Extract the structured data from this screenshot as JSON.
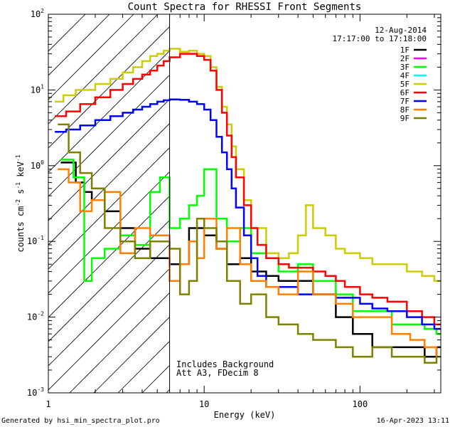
{
  "chart_data": {
    "type": "line",
    "title": "Count Spectra for RHESSI Front Segments",
    "xlabel": "Energy (keV)",
    "ylabel_main": "counts cm",
    "ylabel_exp1": "-2",
    "ylabel_mid": " s",
    "ylabel_exp2": "-1",
    "ylabel_tail": " keV",
    "ylabel_exp3": "-1",
    "xscale": "log",
    "yscale": "log",
    "xlim": [
      1,
      330
    ],
    "ylim": [
      0.001,
      100
    ],
    "x_ticks": [
      {
        "value": 1,
        "label": "1"
      },
      {
        "value": 10,
        "label": "10"
      },
      {
        "value": 100,
        "label": "100"
      }
    ],
    "y_ticks": [
      {
        "value": 0.001,
        "base": "10",
        "exp": "-3"
      },
      {
        "value": 0.01,
        "base": "10",
        "exp": "-2"
      },
      {
        "value": 0.1,
        "base": "10",
        "exp": "-1"
      },
      {
        "value": 1,
        "base": "10",
        "exp": "0"
      },
      {
        "value": 10,
        "base": "10",
        "exp": "1"
      },
      {
        "value": 100,
        "base": "10",
        "exp": "2"
      }
    ],
    "date": "12-Aug-2014",
    "time_range": "17:17:00 to 17:18:00",
    "attenuator_line_x": 6,
    "hatch_region": [
      1,
      6
    ],
    "annotation_line1": "Includes Background",
    "annotation_line2": "Att A3, FDecim 8",
    "series": [
      {
        "name": "1F",
        "color": "#000000",
        "x": [
          1.2,
          1.5,
          1.7,
          1.9,
          2.3,
          2.9,
          3.6,
          4.5,
          6,
          8,
          10,
          12,
          14,
          17,
          20,
          25,
          30,
          40,
          50,
          70,
          90,
          120,
          160,
          210,
          260,
          310
        ],
        "y": [
          1.1,
          0.6,
          0.45,
          0.35,
          0.25,
          0.15,
          0.08,
          0.06,
          0.05,
          0.15,
          0.12,
          0.08,
          0.05,
          0.06,
          0.04,
          0.035,
          0.03,
          0.03,
          0.02,
          0.01,
          0.006,
          0.004,
          0.004,
          0.004,
          0.003,
          0.004
        ]
      },
      {
        "name": "2F",
        "color": "#ff00ff",
        "x": [],
        "y": []
      },
      {
        "name": "3F",
        "color": "#00ff00",
        "x": [
          1.2,
          1.45,
          1.7,
          1.9,
          2.3,
          2.9,
          3.6,
          4.5,
          5.2,
          6,
          7,
          8,
          9,
          10,
          12,
          14,
          17,
          20,
          25,
          30,
          40,
          50,
          70,
          90,
          120,
          160,
          210,
          260,
          310
        ],
        "y": [
          1.2,
          0.7,
          0.03,
          0.06,
          0.08,
          0.12,
          0.09,
          0.45,
          0.7,
          0.15,
          0.2,
          0.3,
          0.4,
          0.9,
          0.2,
          0.1,
          0.15,
          0.07,
          0.06,
          0.04,
          0.05,
          0.03,
          0.02,
          0.012,
          0.012,
          0.008,
          0.008,
          0.007,
          0.006
        ]
      },
      {
        "name": "4F",
        "color": "#00ffff",
        "x": [],
        "y": []
      },
      {
        "name": "5F",
        "color": "#cccc00",
        "x": [
          1.1,
          1.25,
          1.5,
          2.0,
          2.5,
          3.0,
          3.5,
          4.0,
          4.5,
          5.0,
          5.5,
          6.0,
          7.0,
          8.0,
          9.0,
          10,
          11,
          12,
          13,
          14,
          15,
          16,
          18,
          20,
          25,
          30,
          35,
          40,
          45,
          50,
          60,
          70,
          80,
          100,
          120,
          150,
          200,
          250,
          300,
          320
        ],
        "y": [
          7,
          8.5,
          10,
          12,
          14,
          17,
          20,
          24,
          28,
          30,
          33,
          35,
          32,
          33,
          30,
          28,
          20,
          11,
          6,
          3.5,
          1.8,
          0.9,
          0.35,
          0.15,
          0.07,
          0.06,
          0.07,
          0.12,
          0.3,
          0.15,
          0.12,
          0.08,
          0.07,
          0.06,
          0.05,
          0.05,
          0.04,
          0.035,
          0.03,
          0.03
        ]
      },
      {
        "name": "6F",
        "color": "#ff0000",
        "x": [
          1.1,
          1.3,
          1.6,
          2.0,
          2.5,
          3.0,
          3.5,
          4.0,
          4.5,
          5.0,
          5.5,
          6.0,
          7.0,
          8.0,
          9.0,
          10,
          11,
          12,
          13,
          14,
          15,
          16,
          18,
          20,
          22,
          25,
          30,
          35,
          40,
          50,
          60,
          70,
          80,
          100,
          120,
          150,
          200,
          250,
          300,
          320
        ],
        "y": [
          4.5,
          5.2,
          6.5,
          8,
          10,
          12,
          14,
          16,
          18,
          21,
          24,
          27,
          30,
          30,
          28,
          25,
          18,
          10,
          5,
          2.5,
          1.3,
          0.7,
          0.3,
          0.15,
          0.09,
          0.06,
          0.05,
          0.045,
          0.045,
          0.04,
          0.035,
          0.03,
          0.025,
          0.02,
          0.018,
          0.016,
          0.012,
          0.01,
          0.008,
          0.008
        ]
      },
      {
        "name": "7F",
        "color": "#0000ff",
        "x": [
          1.1,
          1.3,
          1.6,
          2.0,
          2.5,
          3.0,
          3.5,
          4.0,
          4.5,
          5.0,
          5.5,
          6.0,
          7.0,
          8.0,
          9.0,
          10,
          11,
          12,
          13,
          14,
          15,
          16,
          18,
          20,
          22,
          25,
          30,
          35,
          40,
          50,
          60,
          70,
          80,
          100,
          120,
          150,
          200,
          250,
          300,
          320
        ],
        "y": [
          2.8,
          3.0,
          3.4,
          4,
          4.5,
          5,
          5.5,
          6,
          6.5,
          7,
          7.3,
          7.5,
          7.4,
          7,
          6.5,
          5.5,
          4,
          2.4,
          1.5,
          0.9,
          0.5,
          0.28,
          0.12,
          0.06,
          0.035,
          0.025,
          0.025,
          0.025,
          0.02,
          0.02,
          0.02,
          0.018,
          0.018,
          0.015,
          0.013,
          0.012,
          0.01,
          0.008,
          0.007,
          0.007
        ]
      },
      {
        "name": "8F",
        "color": "#ff8000",
        "x": [
          1.15,
          1.35,
          1.6,
          1.9,
          2.3,
          2.9,
          3.6,
          4.5,
          6,
          7,
          8,
          9,
          10,
          12,
          14,
          17,
          20,
          25,
          30,
          40,
          50,
          70,
          90,
          120,
          160,
          210,
          260,
          310
        ],
        "y": [
          0.9,
          0.6,
          0.25,
          0.35,
          0.45,
          0.07,
          0.15,
          0.12,
          0.03,
          0.05,
          0.1,
          0.06,
          0.2,
          0.08,
          0.15,
          0.05,
          0.03,
          0.025,
          0.02,
          0.04,
          0.02,
          0.015,
          0.01,
          0.01,
          0.006,
          0.005,
          0.004,
          0.003
        ]
      },
      {
        "name": "9F",
        "color": "#808000",
        "x": [
          1.15,
          1.35,
          1.6,
          1.9,
          2.3,
          2.9,
          3.6,
          4.5,
          6,
          7,
          8,
          9,
          10,
          12,
          14,
          17,
          20,
          25,
          30,
          40,
          50,
          70,
          90,
          120,
          160,
          210,
          260,
          310
        ],
        "y": [
          3.5,
          1.5,
          0.8,
          0.5,
          0.15,
          0.1,
          0.06,
          0.1,
          0.08,
          0.02,
          0.03,
          0.2,
          0.15,
          0.1,
          0.03,
          0.015,
          0.02,
          0.01,
          0.008,
          0.006,
          0.005,
          0.004,
          0.003,
          0.004,
          0.003,
          0.003,
          0.0025,
          0.003
        ]
      }
    ]
  },
  "footer": {
    "generated_by": "Generated by hsi_min_spectra_plot.pro",
    "timestamp": "16-Apr-2023 13:11"
  }
}
